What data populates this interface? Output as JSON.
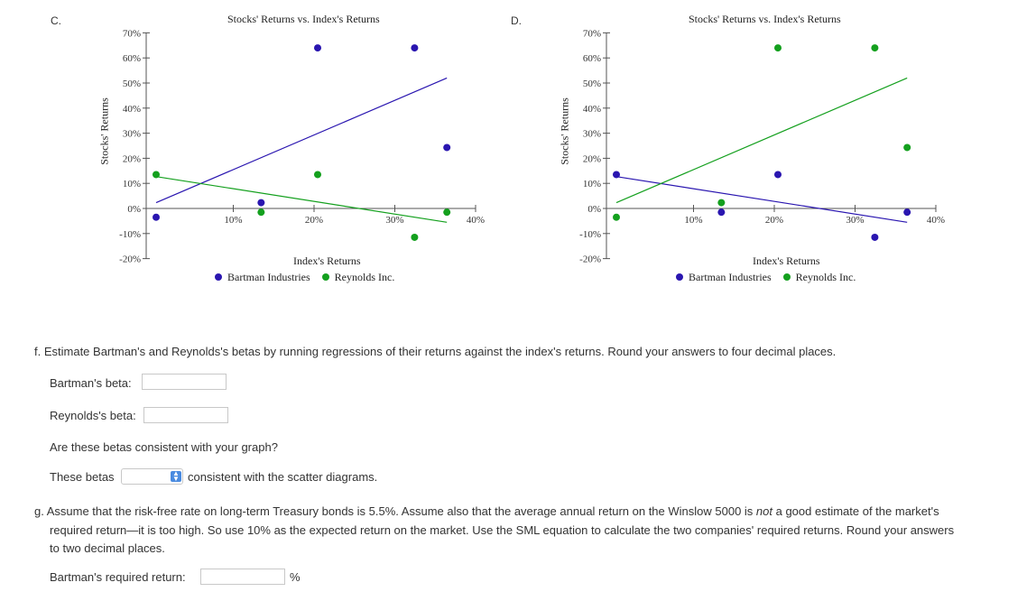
{
  "charts": {
    "c": {
      "letter": "C.",
      "title": "Stocks' Returns vs. Index's Returns",
      "xlabel": "Index's Returns",
      "ylabel": "Stocks' Returns",
      "legend": [
        {
          "name": "Bartman Industries",
          "color": "#2a16b0"
        },
        {
          "name": "Reynolds Inc.",
          "color": "#14a01e"
        }
      ]
    },
    "d": {
      "letter": "D.",
      "title": "Stocks' Returns vs. Index's Returns",
      "xlabel": "Index's Returns",
      "ylabel": "Stocks' Returns",
      "legend": [
        {
          "name": "Bartman Industries",
          "color": "#2a16b0"
        },
        {
          "name": "Reynolds Inc.",
          "color": "#14a01e"
        }
      ]
    }
  },
  "chart_data": [
    {
      "type": "scatter",
      "title": "Stocks' Returns vs. Index's Returns",
      "xlabel": "Index's Returns",
      "ylabel": "Stocks' Returns",
      "x_ticks": [
        "10%",
        "20%",
        "30%",
        "40%"
      ],
      "y_ticks": [
        "70%",
        "60%",
        "50%",
        "40%",
        "30%",
        "20%",
        "10%",
        "0%",
        "-10%",
        "-20%"
      ],
      "xlim": [
        0,
        40
      ],
      "ylim": [
        -20,
        70
      ],
      "legend_position": "bottom",
      "series": [
        {
          "name": "Bartman Industries",
          "color": "#2a16b0",
          "x": [
            0,
            13,
            20,
            32,
            36
          ],
          "y": [
            -3.5,
            2.3,
            64,
            64,
            24.3
          ],
          "trend": {
            "x": [
              0,
              36
            ],
            "y": [
              2.3,
              52
            ]
          }
        },
        {
          "name": "Reynolds Inc.",
          "color": "#14a01e",
          "x": [
            0,
            13,
            20,
            32,
            36
          ],
          "y": [
            13.5,
            -1.5,
            13.5,
            -11.5,
            -1.5
          ],
          "trend": {
            "x": [
              0,
              36
            ],
            "y": [
              12.7,
              -5.5
            ]
          }
        }
      ]
    },
    {
      "type": "scatter",
      "title": "Stocks' Returns vs. Index's Returns",
      "xlabel": "Index's Returns",
      "ylabel": "Stocks' Returns",
      "x_ticks": [
        "10%",
        "20%",
        "30%",
        "40%"
      ],
      "y_ticks": [
        "70%",
        "60%",
        "50%",
        "40%",
        "30%",
        "20%",
        "10%",
        "0%",
        "-10%",
        "-20%"
      ],
      "xlim": [
        0,
        40
      ],
      "ylim": [
        -20,
        70
      ],
      "legend_position": "bottom",
      "series": [
        {
          "name": "Bartman Industries",
          "color": "#2a16b0",
          "x": [
            0,
            13,
            20,
            32,
            36
          ],
          "y": [
            13.5,
            -1.5,
            13.5,
            -11.5,
            -1.5
          ],
          "trend": {
            "x": [
              0,
              36
            ],
            "y": [
              12.7,
              -5.5
            ]
          }
        },
        {
          "name": "Reynolds Inc.",
          "color": "#14a01e",
          "x": [
            0,
            13,
            20,
            32,
            36
          ],
          "y": [
            -3.5,
            2.3,
            64,
            64,
            24.3
          ],
          "trend": {
            "x": [
              0,
              36
            ],
            "y": [
              2.3,
              52
            ]
          }
        }
      ]
    }
  ],
  "questions": {
    "f": {
      "prompt": "f. Estimate Bartman's and Reynolds's betas by running regressions of their returns against the index's returns. Round your answers to four decimal places.",
      "bartman_beta_label": "Bartman's beta:",
      "bartman_beta_value": "",
      "reynolds_beta_label": "Reynolds's beta:",
      "reynolds_beta_value": "",
      "consistency_question": "Are these betas consistent with your graph?",
      "these_betas_label": "These betas",
      "consistency_select_value": "",
      "consistency_suffix": "consistent with the scatter diagrams."
    },
    "g": {
      "prompt_part1": "g. Assume that the risk-free rate on long-term Treasury bonds is 5.5%. Assume also that the average annual return on the Winslow 5000 is ",
      "prompt_emphasis": "not",
      "prompt_part2": " a good estimate of the market's",
      "prompt_line2": "required return—it is too high. So use 10% as the expected return on the market. Use the SML equation to calculate the two companies' required returns. Round your answers",
      "prompt_line3": "to two decimal places.",
      "bartman_required_label": "Bartman's required return:",
      "bartman_required_value": "",
      "percent_sign": "%"
    }
  }
}
